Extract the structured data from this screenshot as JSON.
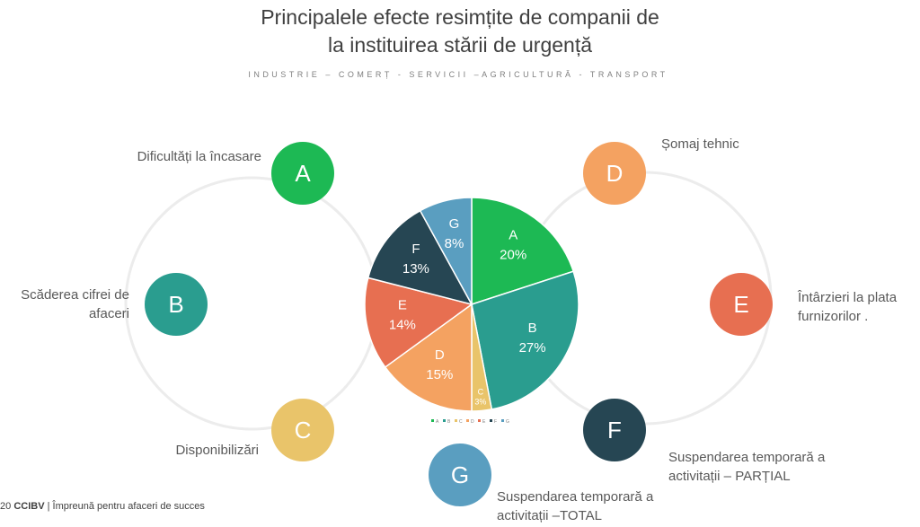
{
  "title": [
    "Principalele efecte resimțite de companii de",
    "la instituirea stării de urgență"
  ],
  "subtitle": "INDUSTRIE – COMERȚ - SERVICII –AGRICULTURĂ - TRANSPORT",
  "items": [
    {
      "letter": "A",
      "label": "Dificultăți la încasare",
      "color": "#1db954"
    },
    {
      "letter": "B",
      "label": "Scăderea cifrei de afaceri",
      "color": "#2a9d8f"
    },
    {
      "letter": "C",
      "label": "Disponibilizări",
      "color": "#e9c46a"
    },
    {
      "letter": "D",
      "label": "Șomaj tehnic",
      "color": "#f4a261"
    },
    {
      "letter": "E",
      "label": "Întârzieri la plata furnizorilor .",
      "color": "#e76f51"
    },
    {
      "letter": "F",
      "label": "Suspendarea temporară a activitații – PARȚIAL",
      "color": "#264653"
    },
    {
      "letter": "G",
      "label": "Suspendarea temporară a activitații –TOTAL",
      "color": "#5a9ec0"
    }
  ],
  "label_lines": {
    "B": [
      "Scăderea cifrei de",
      "afaceri"
    ],
    "E": [
      "Întârzieri la plata",
      "furnizorilor ."
    ],
    "F": [
      "Suspendarea temporară a",
      "activitații – PARȚIAL"
    ],
    "G": [
      "Suspendarea temporară a",
      "activitații –TOTAL"
    ]
  },
  "chart_data": {
    "type": "pie",
    "categories": [
      "A",
      "B",
      "C",
      "D",
      "E",
      "F",
      "G"
    ],
    "values": [
      20,
      27,
      3,
      15,
      14,
      13,
      8
    ],
    "labels": [
      "20%",
      "27%",
      "3%",
      "15%",
      "14%",
      "13%",
      "8%"
    ],
    "colors": [
      "#1db954",
      "#2a9d8f",
      "#e9c46a",
      "#f4a261",
      "#e76f51",
      "#264653",
      "#5a9ec0"
    ],
    "legend_position": "bottom"
  },
  "footer": {
    "year_fragment": "20",
    "brand": "CCIBV",
    "separator": "|",
    "tagline": "Împreună pentru afaceri de succes"
  }
}
